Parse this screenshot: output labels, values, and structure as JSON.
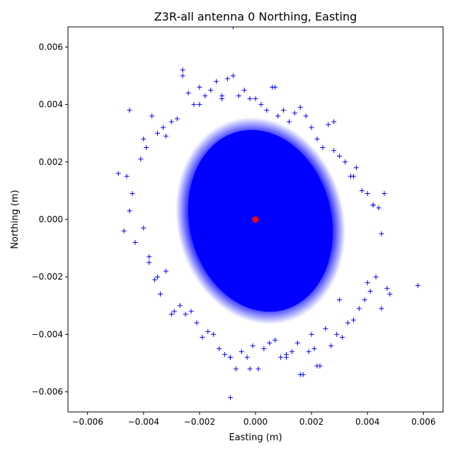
{
  "chart_data": {
    "type": "scatter",
    "title": "Z3R-all antenna 0 Northing, Easting",
    "xlabel": "Easting (m)",
    "ylabel": "Northing (m)",
    "xlim": [
      -0.0067,
      0.0067
    ],
    "ylim": [
      -0.0067,
      0.0067
    ],
    "x_ticks": [
      -0.006,
      -0.004,
      -0.002,
      0.0,
      0.002,
      0.004,
      0.006
    ],
    "x_tick_labels": [
      "−0.006",
      "−0.004",
      "−0.002",
      "0.000",
      "0.002",
      "0.004",
      "0.006"
    ],
    "y_ticks": [
      -0.006,
      -0.004,
      -0.002,
      0.0,
      0.002,
      0.004,
      0.006
    ],
    "y_tick_labels": [
      "−0.006",
      "−0.004",
      "−0.002",
      "0.000",
      "0.002",
      "0.004",
      "0.006"
    ],
    "grid": false,
    "legend": "none",
    "series": [
      {
        "marker": "plus",
        "color": "#0000ff",
        "x": [
          -0.0049,
          -0.0047,
          -0.0046,
          -0.0045,
          -0.0044,
          -0.0043,
          -0.0041,
          -0.004,
          -0.0039,
          -0.0038,
          -0.0037,
          -0.0036,
          -0.0035,
          -0.0034,
          -0.0033,
          -0.0032,
          -0.003,
          -0.0029,
          -0.0028,
          -0.0027,
          -0.0026,
          -0.0025,
          -0.0024,
          -0.0023,
          -0.0022,
          -0.0021,
          -0.002,
          -0.0019,
          -0.0018,
          -0.0017,
          -0.0016,
          -0.0015,
          -0.0014,
          -0.0013,
          -0.0012,
          -0.0011,
          -0.001,
          -0.0009,
          -0.0008,
          -0.0007,
          -0.0006,
          -0.0005,
          -0.0004,
          -0.0003,
          -0.0002,
          -0.0001,
          0.0,
          0.0001,
          0.0002,
          0.0003,
          0.0004,
          0.0005,
          0.0006,
          0.0007,
          0.0008,
          0.0009,
          0.001,
          0.0011,
          0.0012,
          0.0013,
          0.0014,
          0.0015,
          0.0016,
          0.0017,
          0.0018,
          0.0019,
          0.002,
          0.0021,
          0.0022,
          0.0023,
          0.0024,
          0.0025,
          0.0026,
          0.0027,
          0.0028,
          0.0029,
          0.003,
          0.0031,
          0.0032,
          0.0033,
          0.0034,
          0.0035,
          0.0036,
          0.0037,
          0.0038,
          0.0039,
          0.004,
          0.0041,
          0.0042,
          0.0043,
          0.0044,
          0.0045,
          0.0046,
          0.0047,
          0.0048,
          0.0058,
          -0.0026,
          -0.0008,
          0.0007,
          -0.0009,
          -0.0009,
          0.0016,
          0.0022,
          -0.0002,
          0.0011,
          -0.0045,
          -0.004,
          -0.0032,
          -0.002,
          -0.0012,
          0.0028,
          0.0035,
          0.0042,
          0.0045,
          0.004,
          0.003,
          0.002,
          -0.003,
          -0.0035,
          -0.0038
        ],
        "y": [
          0.0016,
          -0.0004,
          0.0015,
          0.0003,
          0.0009,
          -0.0008,
          0.0021,
          -0.0003,
          0.0025,
          -0.0013,
          0.0036,
          -0.0021,
          0.003,
          -0.0026,
          0.0032,
          -0.0018,
          0.0034,
          -0.0032,
          0.0035,
          -0.003,
          0.005,
          -0.0033,
          0.0044,
          -0.0032,
          0.004,
          -0.0036,
          0.0046,
          -0.0041,
          0.0043,
          -0.0039,
          0.0045,
          -0.004,
          0.0048,
          -0.0045,
          0.0043,
          -0.0047,
          0.0049,
          -0.0062,
          0.005,
          -0.0052,
          0.0043,
          -0.0046,
          0.0045,
          -0.0048,
          0.0042,
          -0.0044,
          0.0042,
          -0.0052,
          0.004,
          -0.0045,
          0.0038,
          -0.0043,
          0.0046,
          -0.0042,
          0.0036,
          -0.0048,
          0.0038,
          -0.0047,
          0.0034,
          -0.0046,
          0.0037,
          -0.0043,
          0.0039,
          -0.0054,
          0.0036,
          -0.0046,
          0.0032,
          -0.0045,
          0.0028,
          -0.0051,
          0.0025,
          -0.0038,
          0.0033,
          -0.0044,
          0.0024,
          -0.004,
          0.0022,
          -0.0041,
          0.002,
          -0.0036,
          0.0015,
          -0.0035,
          0.0018,
          -0.0031,
          0.001,
          -0.0028,
          0.0009,
          -0.0025,
          0.0005,
          -0.002,
          0.0004,
          -0.0031,
          0.0009,
          -0.0024,
          -0.0026,
          -0.0023,
          0.0052,
          0.0067,
          0.0046,
          -0.0048,
          -0.0048,
          -0.0054,
          -0.0051,
          -0.0052,
          -0.0048,
          0.0038,
          0.0028,
          0.0029,
          0.004,
          0.0042,
          0.0034,
          0.0015,
          0.0005,
          -0.0005,
          -0.0022,
          -0.0028,
          -0.004,
          -0.0033,
          -0.002,
          -0.0015
        ]
      },
      {
        "marker": "circle",
        "color": "#ff0000",
        "x": [
          0.0
        ],
        "y": [
          0.0
        ]
      }
    ]
  }
}
